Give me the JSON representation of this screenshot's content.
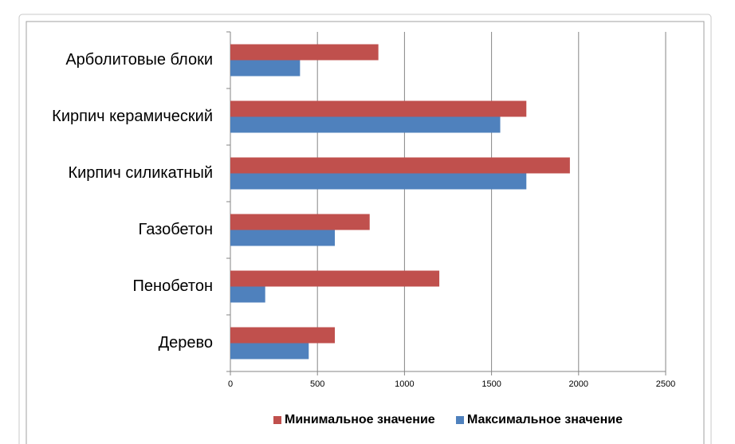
{
  "chart_data": {
    "type": "bar",
    "orientation": "horizontal",
    "categories": [
      "Арболитовые блоки",
      "Кирпич керамический",
      "Кирпич силикатный",
      "Газобетон",
      "Пенобетон",
      "Дерево"
    ],
    "series": [
      {
        "name": "Минимальное значение",
        "color": "#c0504d",
        "values": [
          850,
          1700,
          1950,
          800,
          1200,
          600
        ]
      },
      {
        "name": "Максимальное значение",
        "color": "#4f81bd",
        "values": [
          400,
          1550,
          1700,
          600,
          200,
          450
        ]
      }
    ],
    "xlim": [
      0,
      2500
    ],
    "xticks": [
      0,
      500,
      1000,
      1500,
      2000,
      2500
    ],
    "grid": true,
    "legend": "bottom"
  }
}
